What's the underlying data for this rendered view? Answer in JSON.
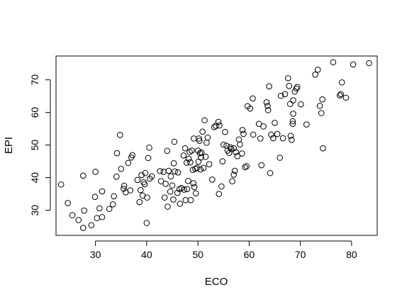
{
  "chart_data": {
    "type": "scatter",
    "title": "",
    "xlabel": "ECO",
    "ylabel": "EPI",
    "xlim": [
      22.3,
      85
    ],
    "ylim": [
      22.3,
      77.3
    ],
    "x_ticks": [
      30,
      40,
      50,
      60,
      70,
      80
    ],
    "y_ticks": [
      30,
      40,
      50,
      60,
      70
    ],
    "grid": false,
    "legend": "none",
    "marker": "open-circle",
    "colors": {
      "stroke": "#000000",
      "background": "#ffffff"
    },
    "points": [
      [
        23.3,
        37.9
      ],
      [
        24.6,
        32.2
      ],
      [
        25.5,
        28.5
      ],
      [
        26.7,
        27.0
      ],
      [
        27.6,
        24.6
      ],
      [
        27.6,
        40.6
      ],
      [
        27.8,
        29.9
      ],
      [
        29.2,
        25.4
      ],
      [
        29.9,
        34.1
      ],
      [
        30.0,
        41.8
      ],
      [
        30.3,
        27.6
      ],
      [
        30.8,
        30.6
      ],
      [
        31.3,
        27.9
      ],
      [
        31.3,
        35.8
      ],
      [
        32.7,
        30.4
      ],
      [
        33.4,
        31.8
      ],
      [
        33.6,
        34.3
      ],
      [
        34.1,
        40.3
      ],
      [
        34.2,
        47.5
      ],
      [
        34.8,
        53.1
      ],
      [
        35.0,
        42.7
      ],
      [
        35.5,
        36.6
      ],
      [
        35.6,
        37.5
      ],
      [
        35.9,
        35.5
      ],
      [
        36.4,
        44.5
      ],
      [
        36.8,
        36.1
      ],
      [
        37.0,
        46.2
      ],
      [
        37.2,
        46.9
      ],
      [
        38.2,
        39.3
      ],
      [
        38.6,
        32.5
      ],
      [
        38.8,
        36.2
      ],
      [
        39.0,
        40.8
      ],
      [
        39.2,
        34.5
      ],
      [
        39.4,
        38.6
      ],
      [
        39.6,
        38.0
      ],
      [
        39.7,
        41.4
      ],
      [
        40.0,
        26.1
      ],
      [
        40.1,
        33.9
      ],
      [
        40.3,
        46.0
      ],
      [
        40.5,
        49.2
      ],
      [
        40.6,
        39.7
      ],
      [
        41.0,
        40.4
      ],
      [
        42.6,
        42.0
      ],
      [
        42.8,
        38.9
      ],
      [
        43.3,
        41.8
      ],
      [
        43.5,
        33.9
      ],
      [
        43.7,
        38.1
      ],
      [
        44.0,
        48.2
      ],
      [
        44.1,
        31.1
      ],
      [
        44.3,
        42.1
      ],
      [
        44.6,
        35.7
      ],
      [
        44.7,
        40.4
      ],
      [
        45.0,
        37.6
      ],
      [
        45.2,
        33.3
      ],
      [
        45.3,
        44.4
      ],
      [
        45.4,
        51.0
      ],
      [
        45.5,
        41.9
      ],
      [
        46.0,
        35.3
      ],
      [
        46.1,
        41.6
      ],
      [
        46.4,
        36.5
      ],
      [
        46.5,
        32.0
      ],
      [
        46.8,
        36.8
      ],
      [
        47.2,
        46.8
      ],
      [
        47.3,
        36.3
      ],
      [
        47.5,
        49.0
      ],
      [
        47.6,
        33.1
      ],
      [
        47.8,
        44.6
      ],
      [
        47.9,
        36.5
      ],
      [
        48.1,
        39.0
      ],
      [
        48.2,
        45.8
      ],
      [
        48.4,
        47.9
      ],
      [
        48.5,
        44.7
      ],
      [
        48.6,
        33.1
      ],
      [
        48.8,
        48.3
      ],
      [
        49.0,
        42.4
      ],
      [
        49.1,
        38.3
      ],
      [
        49.2,
        52.0
      ],
      [
        49.3,
        37.1
      ],
      [
        49.5,
        42.7
      ],
      [
        49.6,
        35.2
      ],
      [
        49.8,
        43.0
      ],
      [
        50.0,
        48.3
      ],
      [
        50.1,
        44.9
      ],
      [
        50.2,
        52.0
      ],
      [
        50.3,
        51.3
      ],
      [
        50.4,
        47.5
      ],
      [
        50.5,
        42.5
      ],
      [
        50.6,
        46.2
      ],
      [
        50.7,
        47.7
      ],
      [
        50.9,
        54.1
      ],
      [
        51.1,
        43.0
      ],
      [
        51.3,
        57.6
      ],
      [
        51.5,
        46.4
      ],
      [
        51.7,
        50.7
      ],
      [
        51.9,
        52.3
      ],
      [
        52.2,
        44.1
      ],
      [
        52.8,
        39.4
      ],
      [
        53.2,
        55.5
      ],
      [
        53.5,
        55.9
      ],
      [
        54.0,
        57.1
      ],
      [
        54.1,
        35.0
      ],
      [
        54.2,
        56.0
      ],
      [
        54.6,
        37.3
      ],
      [
        54.8,
        45.0
      ],
      [
        55.0,
        50.1
      ],
      [
        55.3,
        54.0
      ],
      [
        55.6,
        49.8
      ],
      [
        55.8,
        48.3
      ],
      [
        56.1,
        47.6
      ],
      [
        56.3,
        49.3
      ],
      [
        56.5,
        48.8
      ],
      [
        56.7,
        38.9
      ],
      [
        57.0,
        40.9
      ],
      [
        57.0,
        49.0
      ],
      [
        57.2,
        42.1
      ],
      [
        57.4,
        47.8
      ],
      [
        57.7,
        46.6
      ],
      [
        58.0,
        51.7
      ],
      [
        58.2,
        50.2
      ],
      [
        58.6,
        47.4
      ],
      [
        58.7,
        54.6
      ],
      [
        58.9,
        53.4
      ],
      [
        59.2,
        43.2
      ],
      [
        59.5,
        43.5
      ],
      [
        59.7,
        61.9
      ],
      [
        60.2,
        61.2
      ],
      [
        60.7,
        64.3
      ],
      [
        60.8,
        53.2
      ],
      [
        61.9,
        56.5
      ],
      [
        62.2,
        52.0
      ],
      [
        62.4,
        43.8
      ],
      [
        62.8,
        55.7
      ],
      [
        63.4,
        63.1
      ],
      [
        63.6,
        62.0
      ],
      [
        63.7,
        60.7
      ],
      [
        63.9,
        68.0
      ],
      [
        64.1,
        41.4
      ],
      [
        64.3,
        53.2
      ],
      [
        64.7,
        52.1
      ],
      [
        65.0,
        56.8
      ],
      [
        65.5,
        53.4
      ],
      [
        66.0,
        46.1
      ],
      [
        66.2,
        65.1
      ],
      [
        66.6,
        52.1
      ],
      [
        67.0,
        65.6
      ],
      [
        67.6,
        70.5
      ],
      [
        67.8,
        68.1
      ],
      [
        68.0,
        62.6
      ],
      [
        68.1,
        52.8
      ],
      [
        68.3,
        51.6
      ],
      [
        68.5,
        56.5
      ],
      [
        68.5,
        57.3
      ],
      [
        68.6,
        59.6
      ],
      [
        68.6,
        63.7
      ],
      [
        68.9,
        66.4
      ],
      [
        69.2,
        67.3
      ],
      [
        69.4,
        67.8
      ],
      [
        70.1,
        62.5
      ],
      [
        71.2,
        56.3
      ],
      [
        72.9,
        71.6
      ],
      [
        73.4,
        73.1
      ],
      [
        73.8,
        62.0
      ],
      [
        74.1,
        59.8
      ],
      [
        74.3,
        64.0
      ],
      [
        74.4,
        49.0
      ],
      [
        76.4,
        75.4
      ],
      [
        77.7,
        65.2
      ],
      [
        77.9,
        65.6
      ],
      [
        78.1,
        69.2
      ],
      [
        78.9,
        64.5
      ],
      [
        80.3,
        74.7
      ],
      [
        83.4,
        75.1
      ]
    ]
  }
}
